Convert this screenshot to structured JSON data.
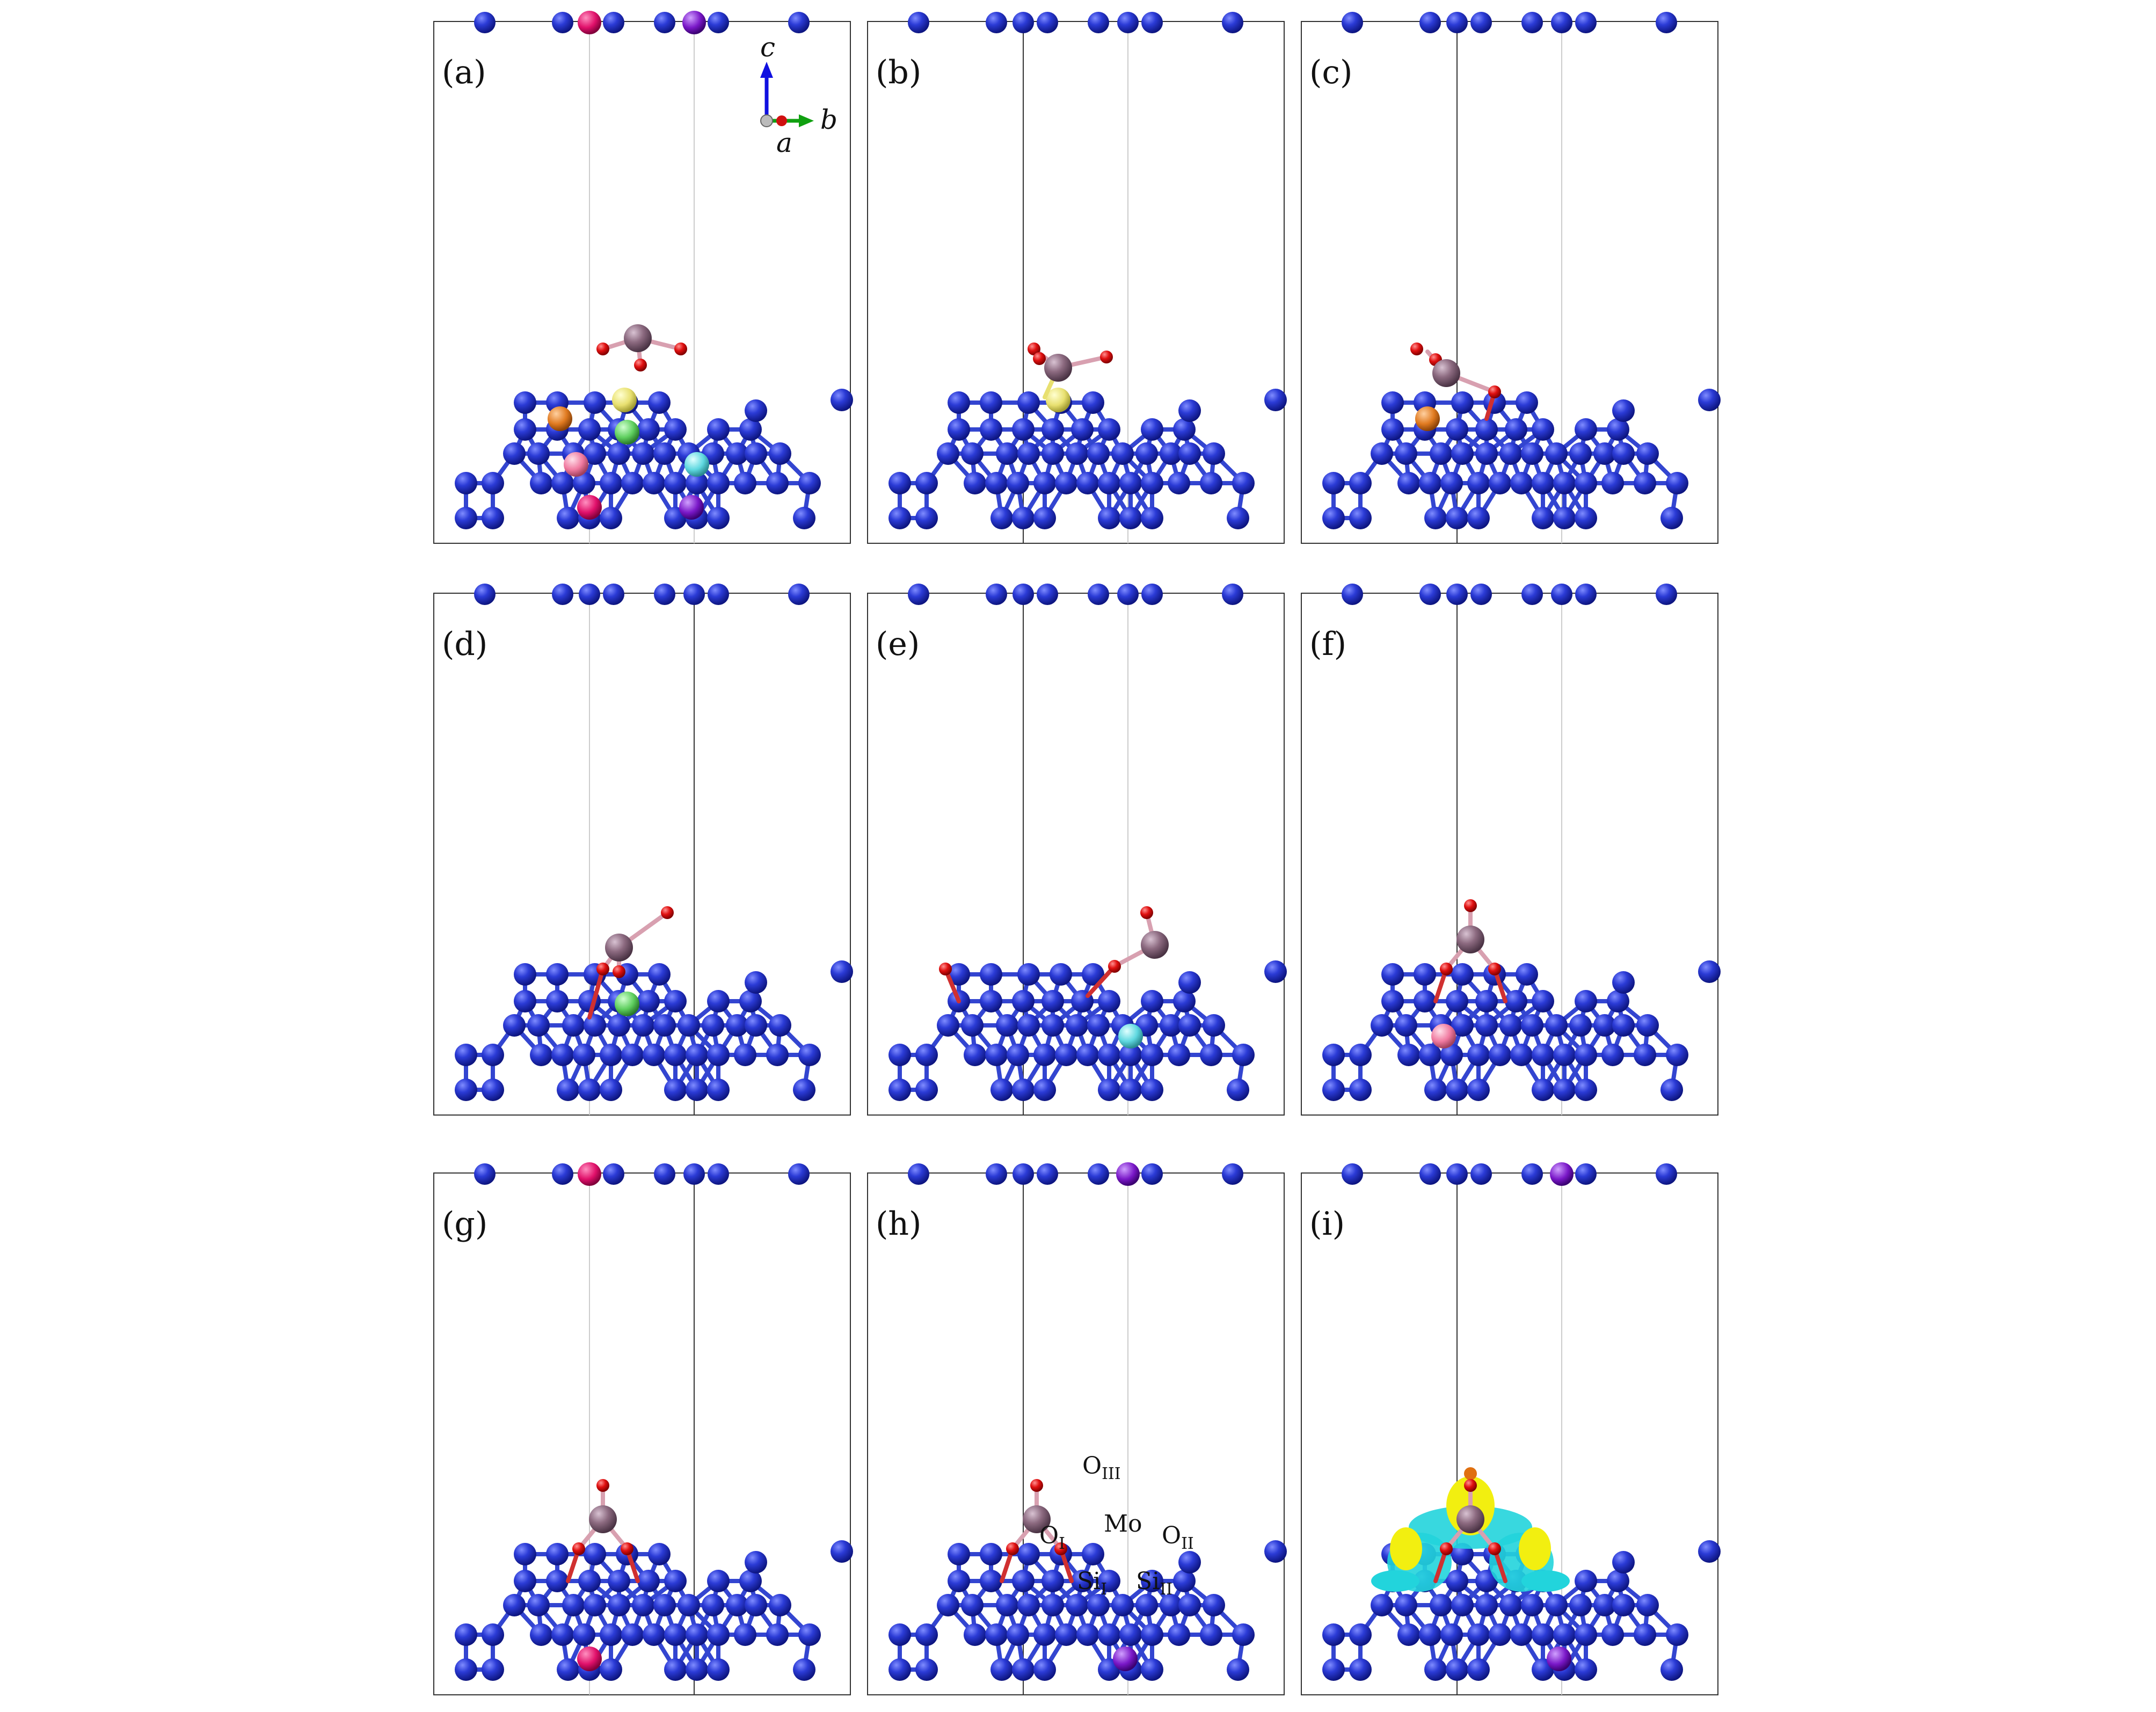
{
  "panels": [
    {
      "label": "(a)",
      "highlights": [
        "yellow",
        "orange",
        "green",
        "pink",
        "cyan",
        "magenta",
        "purple"
      ],
      "adsorbate": "floating",
      "top_marks": [
        "magenta",
        "purple"
      ]
    },
    {
      "label": "(b)",
      "highlights": [
        "yellow"
      ],
      "adsorbate": "tilt-up",
      "top_marks": []
    },
    {
      "label": "(c)",
      "highlights": [
        "orange"
      ],
      "adsorbate": "tilt-left",
      "top_marks": []
    },
    {
      "label": "(d)",
      "highlights": [
        "green"
      ],
      "adsorbate": "tilt-right",
      "top_marks": []
    },
    {
      "label": "(e)",
      "highlights": [
        "cyan"
      ],
      "adsorbate": "bridge-right",
      "top_marks": []
    },
    {
      "label": "(f)",
      "highlights": [
        "pink"
      ],
      "adsorbate": "upright",
      "top_marks": []
    },
    {
      "label": "(g)",
      "highlights": [
        "magenta"
      ],
      "adsorbate": "upright",
      "top_marks": [
        "magenta"
      ]
    },
    {
      "label": "(h)",
      "highlights": [
        "purple"
      ],
      "adsorbate": "upright",
      "top_marks": [
        "purple"
      ]
    },
    {
      "label": "(i)",
      "highlights": [
        "purple"
      ],
      "adsorbate": "density",
      "top_marks": [
        "purple"
      ]
    }
  ],
  "axes": {
    "c": "c",
    "b": "b",
    "a": "a"
  },
  "labels_h": {
    "O3": {
      "main": "O",
      "sub": "III"
    },
    "O1": {
      "main": "O",
      "sub": "I"
    },
    "O2": {
      "main": "O",
      "sub": "II"
    },
    "Mo": {
      "main": "Mo",
      "sub": ""
    },
    "Si1": {
      "main": "Si",
      "sub": "I"
    },
    "Si2": {
      "main": "Si",
      "sub": "II"
    }
  },
  "colors": {
    "si": "#2b3bd6",
    "si_dark": "#1320a0",
    "bond": "#3345d0",
    "mo": "#8c6a80",
    "o": "#e01010",
    "yellow": "#e8e070",
    "orange": "#e07a20",
    "green": "#5fcf5f",
    "pink": "#f07aa0",
    "cyan": "#5fd8e0",
    "magenta": "#e0106a",
    "purple": "#7a18c8",
    "axis_c": "#1010e0",
    "axis_b": "#10a010",
    "axis_a": "#d01010",
    "density_yellow": "#f2ef10",
    "density_cyan": "#22d4dc"
  }
}
